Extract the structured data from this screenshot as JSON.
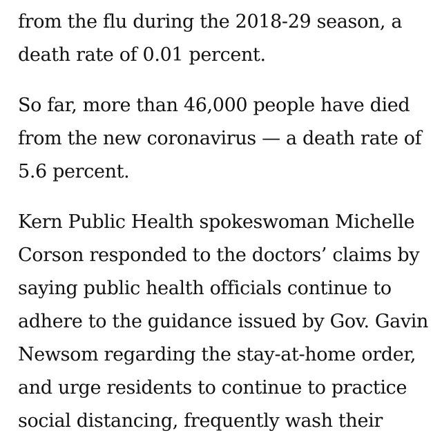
{
  "article": {
    "paragraphs": [
      {
        "lines": [
          "from the flu during the 2018-29 season, a",
          "death rate of 0.01 percent."
        ]
      },
      {
        "lines": [
          "So far, more than 46,000 people have died",
          "from the new coronavirus — a death rate of",
          "5.6 percent."
        ]
      },
      {
        "lines": [
          "Kern Public Health spokeswoman Michelle",
          "Corson responded to the doctors’ claims by",
          "saying public health officials continue to",
          "adhere to the guidance issued by Gov. Gavin",
          "Newsom regarding the stay-at-home order,",
          "and urge residents to continue to practice",
          "social distancing, frequently wash their"
        ]
      }
    ]
  }
}
